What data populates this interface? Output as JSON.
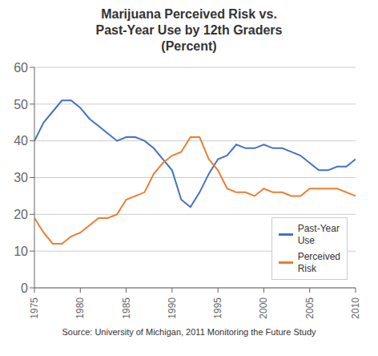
{
  "chart_data": {
    "type": "line",
    "title": "Marijuana Perceived Risk vs.\nPast-Year Use by 12th Graders\n(Percent)",
    "x": [
      1975,
      1976,
      1977,
      1978,
      1979,
      1980,
      1981,
      1982,
      1983,
      1984,
      1985,
      1986,
      1987,
      1988,
      1989,
      1990,
      1991,
      1992,
      1993,
      1994,
      1995,
      1996,
      1997,
      1998,
      1999,
      2000,
      2001,
      2002,
      2003,
      2004,
      2005,
      2006,
      2007,
      2008,
      2009,
      2010
    ],
    "series": [
      {
        "name": "Past-Year\nUse",
        "color": "#4472C4",
        "values": [
          40,
          45,
          48,
          51,
          51,
          49,
          46,
          44,
          42,
          40,
          41,
          41,
          40,
          38,
          35,
          32,
          24,
          22,
          26,
          31,
          35,
          36,
          39,
          38,
          38,
          39,
          38,
          38,
          37,
          36,
          34,
          32,
          32,
          33,
          33,
          35
        ]
      },
      {
        "name": "Perceived\nRisk",
        "color": "#ED7D31",
        "values": [
          19,
          15,
          12,
          12,
          14,
          15,
          17,
          19,
          19,
          20,
          24,
          25,
          26,
          31,
          34,
          36,
          37,
          41,
          41,
          35,
          32,
          27,
          26,
          26,
          25,
          27,
          26,
          26,
          25,
          25,
          27,
          27,
          27,
          27,
          26,
          25
        ]
      }
    ],
    "xlim": [
      1975,
      2010
    ],
    "xticks": [
      1975,
      1980,
      1985,
      1990,
      1995,
      2000,
      2005,
      2010
    ],
    "ylim": [
      0,
      60
    ],
    "yticks": [
      0,
      10,
      20,
      30,
      40,
      50,
      60
    ],
    "grid": true,
    "legend": "lower right",
    "annotations": [
      "Source: University of Michigan, 2011 Monitoring the Future Study"
    ]
  }
}
